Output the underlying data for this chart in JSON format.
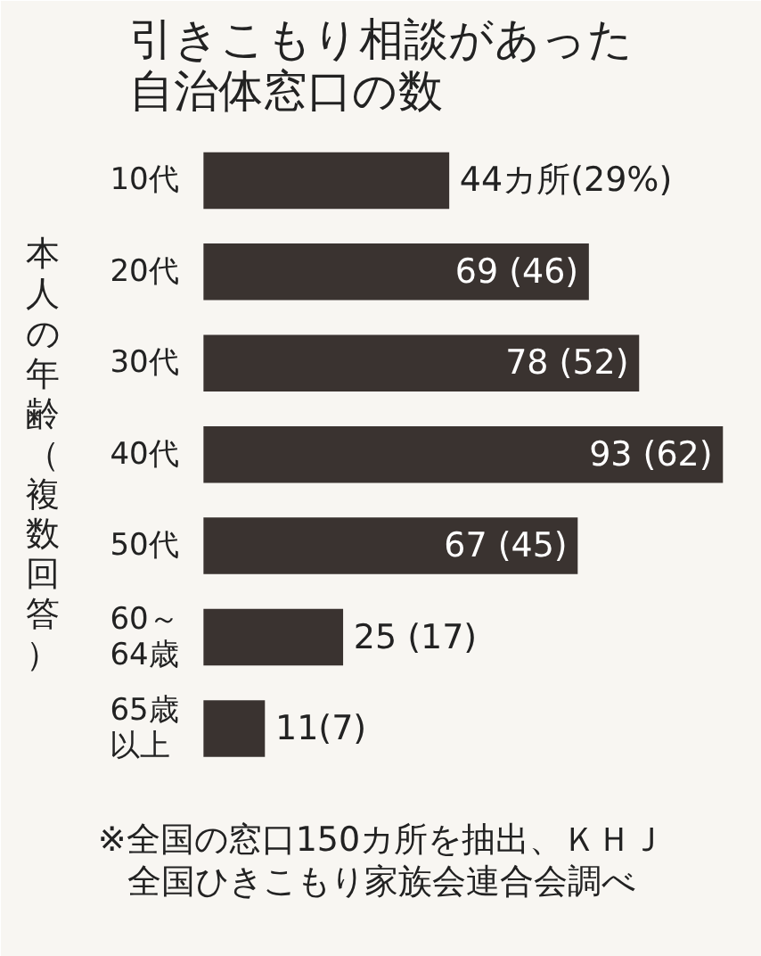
{
  "chart_data": {
    "type": "bar",
    "orientation": "horizontal",
    "title": "引きこもり相談があった自治体窓口の数",
    "ylabel": "本人の年齢（複数回答）",
    "categories": [
      "10代",
      "20代",
      "30代",
      "40代",
      "50代",
      "60～64歳",
      "65歳以上"
    ],
    "values": [
      44,
      69,
      78,
      93,
      67,
      25,
      11
    ],
    "value_labels": [
      "44カ所(29%)",
      "69 (46)",
      "78 (52)",
      "93 (62)",
      "67 (45)",
      "25 (17)",
      "11(7)"
    ],
    "color": "#3a3330",
    "annotations": [
      "※全国の窓口150カ所を抽出、ＫＨＪ全国ひきこもり家族会連合会調べ"
    ]
  }
}
